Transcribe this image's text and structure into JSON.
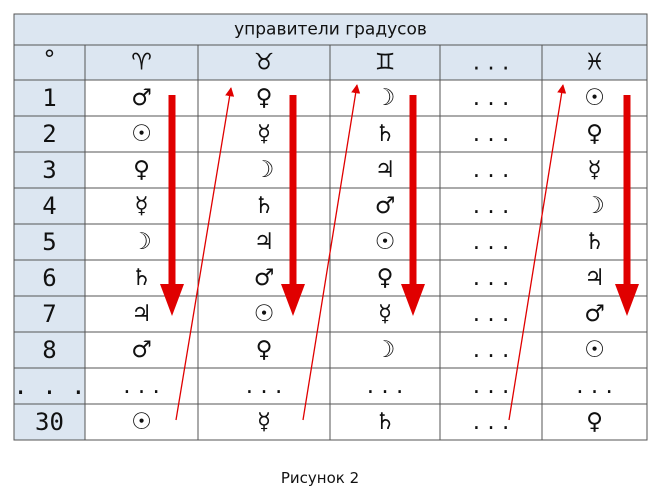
{
  "table": {
    "title": "управители градусов",
    "header": [
      "°",
      "♈",
      "♉",
      "♊",
      ". . .",
      "♓"
    ],
    "rows": [
      [
        "1",
        "♂",
        "♀",
        "☽",
        ". . .",
        "☉"
      ],
      [
        "2",
        "☉",
        "☿",
        "♄",
        ". . .",
        "♀"
      ],
      [
        "3",
        "♀",
        "☽",
        "♃",
        ". . .",
        "☿"
      ],
      [
        "4",
        "☿",
        "♄",
        "♂",
        ". . .",
        "☽"
      ],
      [
        "5",
        "☽",
        "♃",
        "☉",
        ". . .",
        "♄"
      ],
      [
        "6",
        "♄",
        "♂",
        "♀",
        ". . .",
        "♃"
      ],
      [
        "7",
        "♃",
        "☉",
        "☿",
        ". . .",
        "♂"
      ],
      [
        "8",
        "♂",
        "♀",
        "☽",
        ". . .",
        "☉"
      ],
      [
        ". . .",
        ". . .",
        ". . .",
        ". . .",
        ". . .",
        ". . ."
      ],
      [
        "30",
        "☉",
        "☿",
        "♄",
        ". . .",
        "♀"
      ]
    ]
  },
  "caption": "Рисунок 2"
}
